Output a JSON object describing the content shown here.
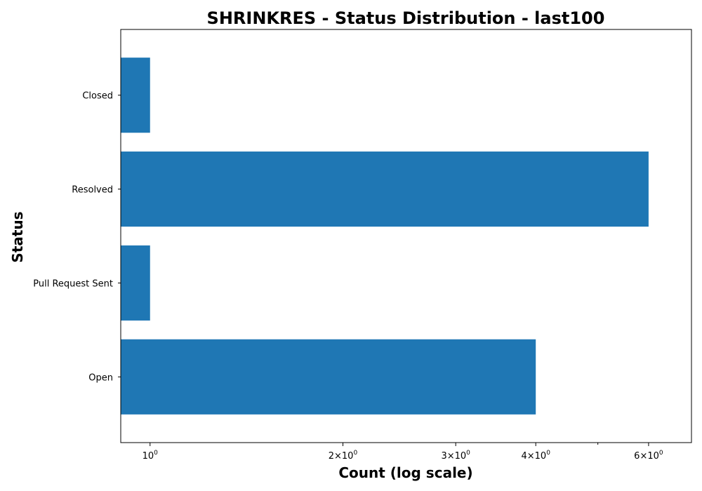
{
  "chart_data": {
    "type": "bar",
    "orientation": "horizontal",
    "title": "SHRINKRES - Status Distribution - last100",
    "xlabel": "Count (log scale)",
    "ylabel": "Status",
    "x_scale": "log",
    "xlim": [
      0.9,
      7
    ],
    "categories": [
      "Closed",
      "Resolved",
      "Pull Request Sent",
      "Open"
    ],
    "values": [
      1,
      6,
      1,
      4
    ],
    "x_ticks": [
      {
        "value": 1,
        "mantissa": "",
        "base": "10",
        "exp": "0"
      },
      {
        "value": 2,
        "mantissa": "2×",
        "base": "10",
        "exp": "0"
      },
      {
        "value": 3,
        "mantissa": "3×",
        "base": "10",
        "exp": "0"
      },
      {
        "value": 4,
        "mantissa": "4×",
        "base": "10",
        "exp": "0"
      },
      {
        "value": 6,
        "mantissa": "6×",
        "base": "10",
        "exp": "0"
      }
    ],
    "minor_ticks": [
      5
    ],
    "bar_color": "#1f77b4",
    "grid": false,
    "legend": false
  }
}
